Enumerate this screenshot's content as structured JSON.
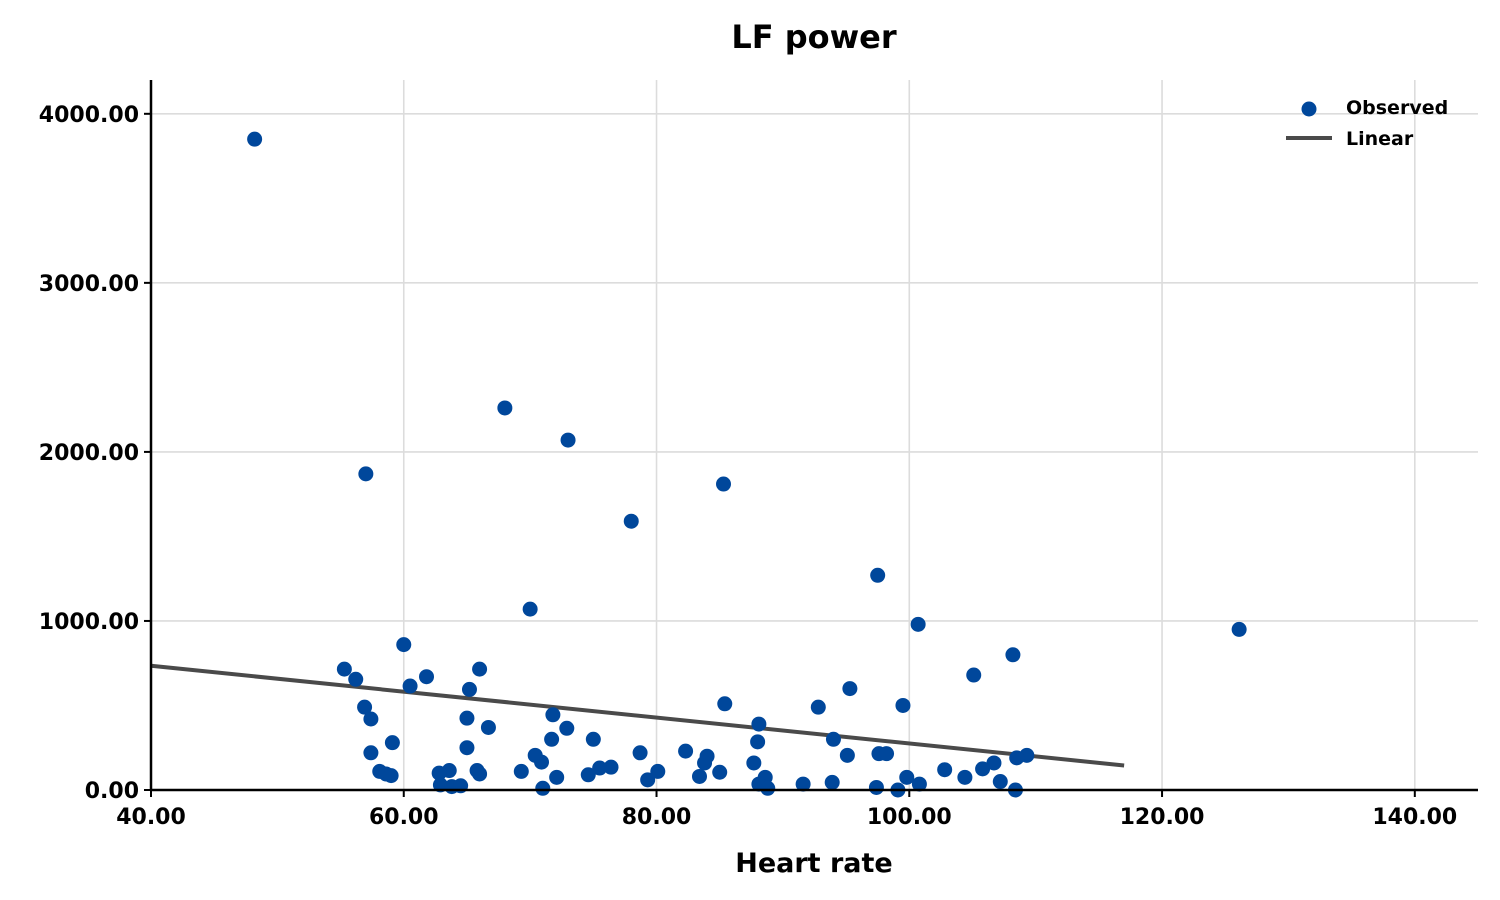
{
  "chart_data": {
    "type": "scatter",
    "title": "LF power",
    "xlabel": "Heart rate",
    "ylabel": "",
    "xlim": [
      40,
      145
    ],
    "ylim": [
      0,
      4200
    ],
    "xticks": [
      40,
      60,
      80,
      100,
      120,
      140
    ],
    "yticks": [
      0,
      1000,
      2000,
      3000,
      4000
    ],
    "xtick_labels": [
      "40.00",
      "60.00",
      "80.00",
      "100.00",
      "120.00",
      "140.00"
    ],
    "ytick_labels": [
      "0.00",
      "1000.00",
      "2000.00",
      "3000.00",
      "4000.00"
    ],
    "grid": true,
    "legend_position": "top-right",
    "colors": {
      "points": "#00479b",
      "line": "#4a4a4a"
    },
    "series": [
      {
        "name": "Observed",
        "kind": "scatter",
        "points": [
          [
            48.2,
            3850
          ],
          [
            57.0,
            1870
          ],
          [
            68.0,
            2260
          ],
          [
            73.0,
            2070
          ],
          [
            78.0,
            1590
          ],
          [
            85.3,
            1810
          ],
          [
            97.5,
            1270
          ],
          [
            100.7,
            980
          ],
          [
            126.1,
            950
          ],
          [
            70.0,
            1070
          ],
          [
            60.0,
            860
          ],
          [
            55.3,
            715
          ],
          [
            56.2,
            655
          ],
          [
            61.8,
            670
          ],
          [
            60.5,
            615
          ],
          [
            66.0,
            715
          ],
          [
            65.2,
            595
          ],
          [
            56.9,
            490
          ],
          [
            57.4,
            420
          ],
          [
            65.0,
            425
          ],
          [
            66.7,
            370
          ],
          [
            71.8,
            445
          ],
          [
            72.9,
            365
          ],
          [
            59.1,
            280
          ],
          [
            57.4,
            220
          ],
          [
            65.0,
            250
          ],
          [
            71.7,
            300
          ],
          [
            75.0,
            300
          ],
          [
            78.7,
            220
          ],
          [
            82.3,
            230
          ],
          [
            84.0,
            200
          ],
          [
            83.8,
            160
          ],
          [
            85.4,
            510
          ],
          [
            88.1,
            390
          ],
          [
            88.0,
            285
          ],
          [
            87.7,
            160
          ],
          [
            92.8,
            490
          ],
          [
            94.0,
            300
          ],
          [
            95.3,
            600
          ],
          [
            95.1,
            205
          ],
          [
            97.6,
            215
          ],
          [
            98.2,
            215
          ],
          [
            99.5,
            500
          ],
          [
            105.1,
            680
          ],
          [
            108.2,
            800
          ],
          [
            109.3,
            205
          ],
          [
            108.5,
            190
          ],
          [
            106.7,
            160
          ],
          [
            105.8,
            125
          ],
          [
            102.8,
            120
          ],
          [
            104.4,
            75
          ],
          [
            107.2,
            50
          ],
          [
            108.4,
            0
          ],
          [
            99.8,
            75
          ],
          [
            100.8,
            35
          ],
          [
            99.1,
            0
          ],
          [
            97.4,
            15
          ],
          [
            93.9,
            45
          ],
          [
            91.6,
            35
          ],
          [
            88.6,
            75
          ],
          [
            88.1,
            35
          ],
          [
            88.8,
            10
          ],
          [
            85.0,
            105
          ],
          [
            83.4,
            80
          ],
          [
            80.1,
            110
          ],
          [
            79.3,
            60
          ],
          [
            76.4,
            135
          ],
          [
            75.5,
            130
          ],
          [
            74.6,
            90
          ],
          [
            72.1,
            75
          ],
          [
            70.9,
            165
          ],
          [
            70.4,
            205
          ],
          [
            71.0,
            10
          ],
          [
            69.3,
            110
          ],
          [
            66.0,
            95
          ],
          [
            65.8,
            115
          ],
          [
            63.6,
            115
          ],
          [
            62.8,
            100
          ],
          [
            62.9,
            30
          ],
          [
            63.8,
            20
          ],
          [
            64.5,
            25
          ],
          [
            58.1,
            110
          ],
          [
            58.6,
            95
          ],
          [
            59.0,
            85
          ]
        ]
      },
      {
        "name": "Linear",
        "kind": "line",
        "points": [
          [
            40,
            735
          ],
          [
            117,
            145
          ]
        ]
      }
    ]
  }
}
